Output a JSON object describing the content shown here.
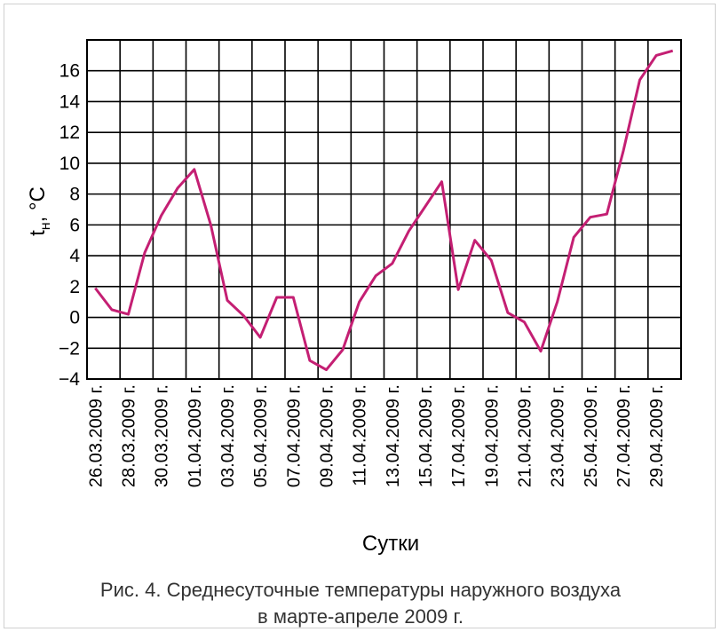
{
  "chart_data": {
    "type": "line",
    "xlabel": "Сутки",
    "ylabel": "t_н, °С",
    "ylim": [
      -4,
      18
    ],
    "yticks": [
      -4,
      -2,
      0,
      2,
      4,
      6,
      8,
      10,
      12,
      14,
      16
    ],
    "xtick_labels": [
      "26.03.2009 г.",
      "28.03.2009 г.",
      "30.03.2009 г.",
      "01.04.2009 г.",
      "03.04.2009 г.",
      "05.04.2009 г.",
      "07.04.2009 г.",
      "09.04.2009 г.",
      "11.04.2009 г.",
      "13.04.2009 г.",
      "15.04.2009 г.",
      "17.04.2009 г.",
      "19.04.2009 г.",
      "21.04.2009 г.",
      "23.04.2009 г.",
      "25.04.2009 г.",
      "27.04.2009 г.",
      "29.04.2009 г."
    ],
    "grid": true,
    "color": "#c41f73",
    "series": [
      {
        "x": [
          "26.03.2009",
          "27.03.2009",
          "28.03.2009",
          "29.03.2009",
          "30.03.2009",
          "31.03.2009",
          "01.04.2009",
          "02.04.2009",
          "03.04.2009",
          "04.04.2009",
          "05.04.2009",
          "06.04.2009",
          "07.04.2009",
          "08.04.2009",
          "09.04.2009",
          "10.04.2009",
          "11.04.2009",
          "12.04.2009",
          "13.04.2009",
          "14.04.2009",
          "15.04.2009",
          "16.04.2009",
          "17.04.2009",
          "18.04.2009",
          "19.04.2009",
          "20.04.2009",
          "21.04.2009",
          "22.04.2009",
          "23.04.2009",
          "24.04.2009",
          "25.04.2009",
          "26.04.2009",
          "27.04.2009",
          "28.04.2009",
          "29.04.2009",
          "30.04.2009"
        ],
        "values": [
          1.9,
          0.5,
          0.2,
          4.2,
          6.6,
          8.4,
          9.6,
          6.0,
          1.1,
          0.1,
          -1.3,
          1.3,
          1.3,
          -2.8,
          -3.4,
          -2.1,
          1.0,
          2.7,
          3.5,
          5.6,
          7.2,
          8.8,
          1.8,
          5.0,
          3.7,
          0.3,
          -0.3,
          -2.2,
          1.0,
          5.2,
          6.5,
          6.7,
          10.8,
          15.4,
          17.0,
          17.3
        ]
      }
    ]
  },
  "caption": {
    "line1": "Рис. 4. Среднесуточные температуры наружного воздуха",
    "line2": "в марте-апреле 2009 г."
  }
}
